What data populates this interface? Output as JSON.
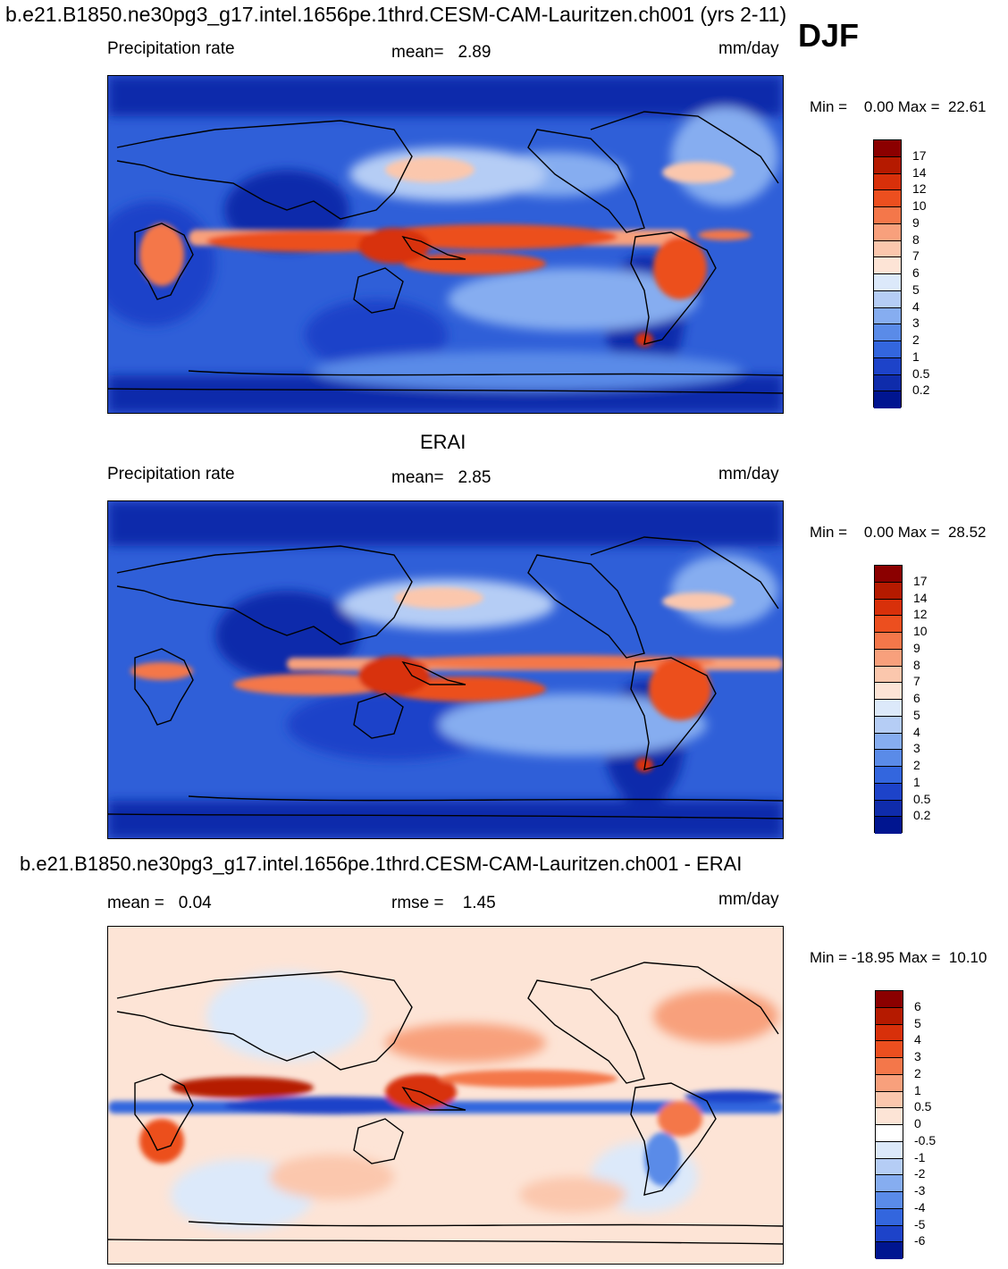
{
  "header": {
    "title": "b.e21.B1850.ne30pg3_g17.intel.1656pe.1thrd.CESM-CAM-Lauritzen.ch001 (yrs 2-11)",
    "season": "DJF"
  },
  "panels": [
    {
      "id": "model",
      "left_label": "Precipitation rate",
      "center_label": "mean=   2.89",
      "units": "mm/day",
      "minmax": "Min =    0.00 Max =  22.61",
      "colorbar_labels": [
        "17",
        "14",
        "12",
        "10",
        "9",
        "8",
        "7",
        "6",
        "5",
        "4",
        "3",
        "2",
        "1",
        "0.5",
        "0.2"
      ],
      "colorbar_colors": [
        "#8b0000",
        "#b51a00",
        "#d8300a",
        "#ec4f1f",
        "#f4774a",
        "#f8a07c",
        "#fbc7ad",
        "#fde4d6",
        "#dce9fa",
        "#b5cdf5",
        "#86adf0",
        "#5a8be8",
        "#3366de",
        "#1d43c9",
        "#0f2cab",
        "#001590"
      ]
    },
    {
      "id": "obs",
      "heading": "ERAI",
      "left_label": "Precipitation rate",
      "center_label": "mean=   2.85",
      "units": "mm/day",
      "minmax": "Min =    0.00 Max =  28.52",
      "colorbar_labels": [
        "17",
        "14",
        "12",
        "10",
        "9",
        "8",
        "7",
        "6",
        "5",
        "4",
        "3",
        "2",
        "1",
        "0.5",
        "0.2"
      ],
      "colorbar_colors": [
        "#8b0000",
        "#b51a00",
        "#d8300a",
        "#ec4f1f",
        "#f4774a",
        "#f8a07c",
        "#fbc7ad",
        "#fde4d6",
        "#dce9fa",
        "#b5cdf5",
        "#86adf0",
        "#5a8be8",
        "#3366de",
        "#1d43c9",
        "#0f2cab",
        "#001590"
      ]
    },
    {
      "id": "diff",
      "heading": "b.e21.B1850.ne30pg3_g17.intel.1656pe.1thrd.CESM-CAM-Lauritzen.ch001 - ERAI",
      "left_label": "mean =   0.04",
      "center_label": "rmse =    1.45",
      "units": "mm/day",
      "minmax": "Min = -18.95 Max =  10.10",
      "colorbar_labels": [
        "6",
        "5",
        "4",
        "3",
        "2",
        "1",
        "0.5",
        "0",
        "-0.5",
        "-1",
        "-2",
        "-3",
        "-4",
        "-5",
        "-6"
      ],
      "colorbar_colors": [
        "#8b0000",
        "#b51a00",
        "#d8300a",
        "#ec4f1f",
        "#f4774a",
        "#f8a07c",
        "#fbc7ad",
        "#fde4d6",
        "#ffffff",
        "#dce9fa",
        "#b5cdf5",
        "#86adf0",
        "#5a8be8",
        "#3366de",
        "#1d43c9",
        "#001590"
      ]
    }
  ]
}
